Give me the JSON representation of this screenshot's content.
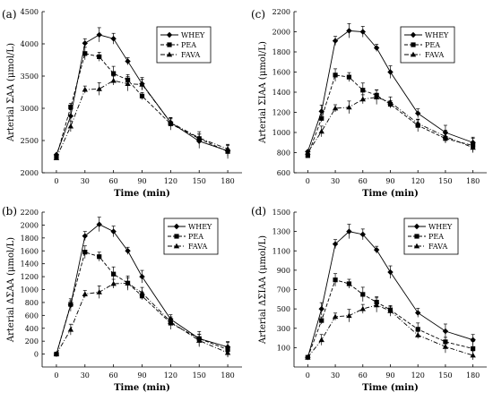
{
  "legend": [
    "WHEY",
    "PEA",
    "FAVA"
  ],
  "colors": {
    "line": "#000000",
    "background": "#ffffff"
  },
  "chart_data": [
    {
      "panel": "(a)",
      "type": "line",
      "xlabel": "Time (min)",
      "ylabel": "Arterial ΣAA (μmol/L)",
      "x": [
        0,
        15,
        30,
        45,
        60,
        75,
        90,
        120,
        150,
        180
      ],
      "xticks": [
        "0",
        "30",
        "60",
        "90",
        "120",
        "150",
        "180"
      ],
      "ylim": [
        2000,
        4500
      ],
      "yticks": [
        "2000",
        "2500",
        "3000",
        "3500",
        "4000",
        "4500"
      ],
      "series": [
        {
          "name": "WHEY",
          "marker": "diamond",
          "dash": "solid",
          "values": [
            2280,
            2880,
            4010,
            4140,
            4080,
            3730,
            3380,
            2780,
            2490,
            2340
          ]
        },
        {
          "name": "PEA",
          "marker": "square",
          "dash": "dashed",
          "values": [
            2250,
            3020,
            3850,
            3800,
            3540,
            3440,
            3190,
            2760,
            2530,
            2330
          ]
        },
        {
          "name": "FAVA",
          "marker": "triangle",
          "dash": "dashdot",
          "values": [
            2230,
            2720,
            3290,
            3300,
            3430,
            3380,
            3370,
            2780,
            2540,
            2370
          ]
        }
      ]
    },
    {
      "panel": "(c)",
      "type": "line",
      "xlabel": "Time (min)",
      "ylabel": "Arterial ΣIAA (μmol/L)",
      "x": [
        0,
        15,
        30,
        45,
        60,
        75,
        90,
        120,
        150,
        180
      ],
      "xticks": [
        "0",
        "30",
        "60",
        "90",
        "120",
        "150",
        "180"
      ],
      "ylim": [
        600,
        2200
      ],
      "yticks": [
        "600",
        "800",
        "1000",
        "1200",
        "1400",
        "1600",
        "1800",
        "2000",
        "2200"
      ],
      "series": [
        {
          "name": "WHEY",
          "marker": "diamond",
          "dash": "solid",
          "values": [
            810,
            1210,
            1910,
            2010,
            2000,
            1840,
            1600,
            1190,
            1000,
            900
          ]
        },
        {
          "name": "PEA",
          "marker": "square",
          "dash": "dashed",
          "values": [
            770,
            1140,
            1570,
            1550,
            1420,
            1370,
            1280,
            1070,
            940,
            870
          ]
        },
        {
          "name": "FAVA",
          "marker": "triangle",
          "dash": "dashdot",
          "values": [
            800,
            1010,
            1240,
            1250,
            1330,
            1350,
            1300,
            1090,
            960,
            850
          ]
        }
      ]
    },
    {
      "panel": "(b)",
      "type": "line",
      "xlabel": "Time (min)",
      "ylabel": "Arterial ΔΣAA (μmol/L)",
      "x": [
        0,
        15,
        30,
        45,
        60,
        75,
        90,
        120,
        150,
        180
      ],
      "xticks": [
        "0",
        "30",
        "60",
        "90",
        "120",
        "150",
        "180"
      ],
      "ylim": [
        -200,
        2200
      ],
      "yticks": [
        "0",
        "200",
        "400",
        "600",
        "800",
        "1000",
        "1200",
        "1400",
        "1600",
        "1800",
        "2000",
        "2200"
      ],
      "series": [
        {
          "name": "WHEY",
          "marker": "diamond",
          "dash": "solid",
          "values": [
            0,
            760,
            1830,
            2010,
            1900,
            1600,
            1200,
            540,
            240,
            110
          ]
        },
        {
          "name": "PEA",
          "marker": "square",
          "dash": "dashed",
          "values": [
            0,
            770,
            1580,
            1510,
            1240,
            1100,
            900,
            480,
            240,
            70
          ]
        },
        {
          "name": "FAVA",
          "marker": "triangle",
          "dash": "dashdot",
          "values": [
            0,
            380,
            930,
            960,
            1090,
            1100,
            950,
            500,
            210,
            20
          ]
        }
      ]
    },
    {
      "panel": "(d)",
      "type": "line",
      "xlabel": "Time (min)",
      "ylabel": "Arterial ΔΣIAA (μmol/L)",
      "x": [
        0,
        15,
        30,
        45,
        60,
        75,
        90,
        120,
        150,
        180
      ],
      "xticks": [
        "0",
        "30",
        "60",
        "90",
        "120",
        "150",
        "180"
      ],
      "ylim": [
        -100,
        1500
      ],
      "yticks": [
        "100",
        "300",
        "500",
        "700",
        "900",
        "1100",
        "1300",
        "1500"
      ],
      "series": [
        {
          "name": "WHEY",
          "marker": "diamond",
          "dash": "solid",
          "values": [
            0,
            500,
            1170,
            1300,
            1270,
            1110,
            880,
            460,
            270,
            180
          ]
        },
        {
          "name": "PEA",
          "marker": "square",
          "dash": "dashed",
          "values": [
            0,
            380,
            800,
            760,
            650,
            570,
            490,
            290,
            160,
            90
          ]
        },
        {
          "name": "FAVA",
          "marker": "triangle",
          "dash": "dashdot",
          "values": [
            0,
            180,
            420,
            430,
            500,
            540,
            480,
            230,
            110,
            20
          ]
        }
      ]
    }
  ]
}
